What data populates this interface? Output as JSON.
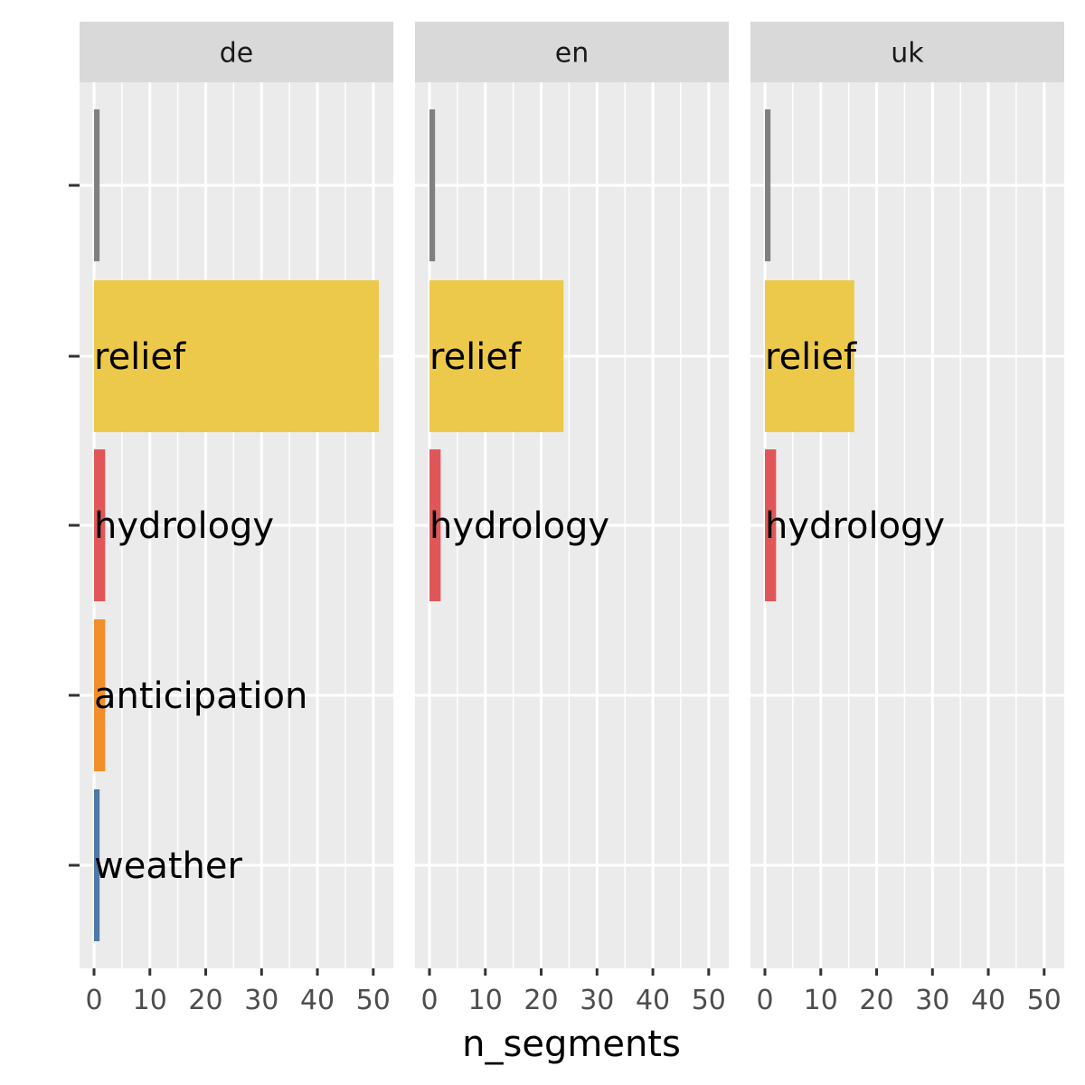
{
  "chart_data": {
    "type": "bar",
    "orientation": "horizontal",
    "facet_by": "language",
    "xlabel": "n_segments",
    "ylabel": "",
    "xlim": [
      0,
      52
    ],
    "x_ticks": [
      0,
      10,
      20,
      30,
      40,
      50
    ],
    "grid": true,
    "categories": [
      "",
      "relief",
      "hydrology",
      "anticipation",
      "weather"
    ],
    "colors": {
      "": "#808080",
      "relief": "#ecc94b",
      "hydrology": "#e15759",
      "anticipation": "#f28e2b",
      "weather": "#4e79a7"
    },
    "panel_background": "#ebebeb",
    "strip_background": "#d9d9d9",
    "facets": [
      {
        "name": "de",
        "values": [
          1,
          51,
          2,
          2,
          1
        ]
      },
      {
        "name": "en",
        "values": [
          1,
          24,
          2,
          null,
          null
        ]
      },
      {
        "name": "uk",
        "values": [
          1,
          16,
          2,
          null,
          null
        ]
      }
    ]
  }
}
